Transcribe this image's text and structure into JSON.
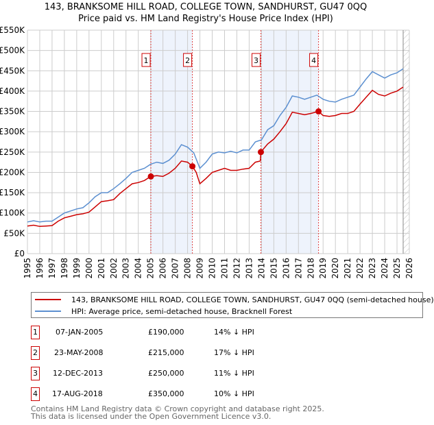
{
  "chart_data": {
    "type": "line",
    "title": "143, BRANKSOME HILL ROAD, COLLEGE TOWN, SANDHURST, GU47 0QQ",
    "subtitle": "Price paid vs. HM Land Registry's House Price Index (HPI)",
    "xlim": [
      1995,
      2026
    ],
    "ylim": [
      0,
      550000
    ],
    "x_ticks": [
      "1995",
      "1996",
      "1997",
      "1998",
      "1999",
      "2000",
      "2001",
      "2002",
      "2003",
      "2004",
      "2005",
      "2006",
      "2007",
      "2008",
      "2009",
      "2010",
      "2011",
      "2012",
      "2013",
      "2014",
      "2015",
      "2016",
      "2017",
      "2018",
      "2019",
      "2020",
      "2021",
      "2022",
      "2023",
      "2024",
      "2025",
      "2026"
    ],
    "y_ticks": [
      {
        "v": 0,
        "label": "£0"
      },
      {
        "v": 50000,
        "label": "£50K"
      },
      {
        "v": 100000,
        "label": "£100K"
      },
      {
        "v": 150000,
        "label": "£150K"
      },
      {
        "v": 200000,
        "label": "£200K"
      },
      {
        "v": 250000,
        "label": "£250K"
      },
      {
        "v": 300000,
        "label": "£300K"
      },
      {
        "v": 350000,
        "label": "£350K"
      },
      {
        "v": 400000,
        "label": "£400K"
      },
      {
        "v": 450000,
        "label": "£450K"
      },
      {
        "v": 500000,
        "label": "£500K"
      },
      {
        "v": 550000,
        "label": "£550K"
      }
    ],
    "grid": true,
    "shaded_ranges": [
      [
        2005.02,
        2008.39
      ],
      [
        2013.95,
        2018.63
      ]
    ],
    "forecast_hatch_from": 2025.5,
    "series": [
      {
        "name": "143, BRANKSOME HILL ROAD, COLLEGE TOWN, SANDHURST, GU47 0QQ (semi-detached house)",
        "color": "#cc0000",
        "x": [
          1995,
          1995.5,
          1996,
          1996.5,
          1997,
          1997.5,
          1998,
          1998.5,
          1999,
          1999.5,
          2000,
          2000.5,
          2001,
          2001.5,
          2002,
          2002.5,
          2003,
          2003.5,
          2004,
          2004.5,
          2005,
          2005.5,
          2006,
          2006.5,
          2007,
          2007.5,
          2008,
          2008.39,
          2008.7,
          2009,
          2009.5,
          2010,
          2010.5,
          2011,
          2011.5,
          2012,
          2012.5,
          2013,
          2013.5,
          2013.9,
          2013.95,
          2014.5,
          2015,
          2015.5,
          2016,
          2016.5,
          2017,
          2017.5,
          2018,
          2018.63,
          2019,
          2019.5,
          2020,
          2020.5,
          2021,
          2021.5,
          2022,
          2022.5,
          2023,
          2023.5,
          2024,
          2024.5,
          2025,
          2025.5
        ],
        "y": [
          68000,
          70000,
          67000,
          68000,
          69000,
          80000,
          88000,
          92000,
          96000,
          98000,
          102000,
          115000,
          128000,
          130000,
          133000,
          148000,
          160000,
          172000,
          175000,
          180000,
          190000,
          192000,
          190000,
          198000,
          210000,
          228000,
          225000,
          215000,
          200000,
          172000,
          185000,
          200000,
          205000,
          210000,
          205000,
          205000,
          208000,
          210000,
          225000,
          228000,
          250000,
          270000,
          282000,
          300000,
          320000,
          348000,
          345000,
          342000,
          345000,
          350000,
          340000,
          338000,
          340000,
          345000,
          345000,
          350000,
          368000,
          385000,
          402000,
          392000,
          388000,
          395000,
          400000,
          410000
        ]
      },
      {
        "name": "HPI: Average price, semi-detached house, Bracknell Forest",
        "color": "#5b8fd0",
        "x": [
          1995,
          1995.5,
          1996,
          1996.5,
          1997,
          1997.5,
          1998,
          1998.5,
          1999,
          1999.5,
          2000,
          2000.5,
          2001,
          2001.5,
          2002,
          2002.5,
          2003,
          2003.5,
          2004,
          2004.5,
          2005,
          2005.5,
          2006,
          2006.5,
          2007,
          2007.5,
          2008,
          2008.5,
          2009,
          2009.5,
          2010,
          2010.5,
          2011,
          2011.5,
          2012,
          2012.5,
          2013,
          2013.5,
          2014,
          2014.5,
          2015,
          2015.5,
          2016,
          2016.5,
          2017,
          2017.5,
          2018,
          2018.5,
          2019,
          2019.5,
          2020,
          2020.5,
          2021,
          2021.5,
          2022,
          2022.5,
          2023,
          2023.5,
          2024,
          2024.5,
          2025,
          2025.5
        ],
        "y": [
          78000,
          81000,
          78000,
          80000,
          80000,
          90000,
          100000,
          105000,
          110000,
          113000,
          125000,
          140000,
          150000,
          150000,
          160000,
          172000,
          185000,
          200000,
          205000,
          210000,
          220000,
          225000,
          222000,
          230000,
          245000,
          268000,
          262000,
          248000,
          210000,
          225000,
          245000,
          250000,
          248000,
          252000,
          248000,
          255000,
          255000,
          275000,
          280000,
          305000,
          315000,
          340000,
          360000,
          388000,
          385000,
          380000,
          385000,
          390000,
          380000,
          375000,
          373000,
          380000,
          385000,
          390000,
          410000,
          430000,
          448000,
          440000,
          432000,
          440000,
          445000,
          455000
        ]
      }
    ],
    "markers": [
      {
        "id": "1",
        "x": 2005.02,
        "y": 190000
      },
      {
        "id": "2",
        "x": 2008.39,
        "y": 215000
      },
      {
        "id": "3",
        "x": 2013.95,
        "y": 250000
      },
      {
        "id": "4",
        "x": 2018.63,
        "y": 350000
      }
    ]
  },
  "legend": {
    "property": "143, BRANKSOME HILL ROAD, COLLEGE TOWN, SANDHURST, GU47 0QQ (semi-detached house)",
    "hpi": "HPI: Average price, semi-detached house, Bracknell Forest"
  },
  "sales": [
    {
      "id": "1",
      "date": "07-JAN-2005",
      "price": "£190,000",
      "delta": "14% ↓ HPI"
    },
    {
      "id": "2",
      "date": "23-MAY-2008",
      "price": "£215,000",
      "delta": "17% ↓ HPI"
    },
    {
      "id": "3",
      "date": "12-DEC-2013",
      "price": "£250,000",
      "delta": "11% ↓ HPI"
    },
    {
      "id": "4",
      "date": "17-AUG-2018",
      "price": "£350,000",
      "delta": "10% ↓ HPI"
    }
  ],
  "footer": {
    "line1": "Contains HM Land Registry data © Crown copyright and database right 2025.",
    "line2": "This data is licensed under the Open Government Licence v3.0."
  }
}
